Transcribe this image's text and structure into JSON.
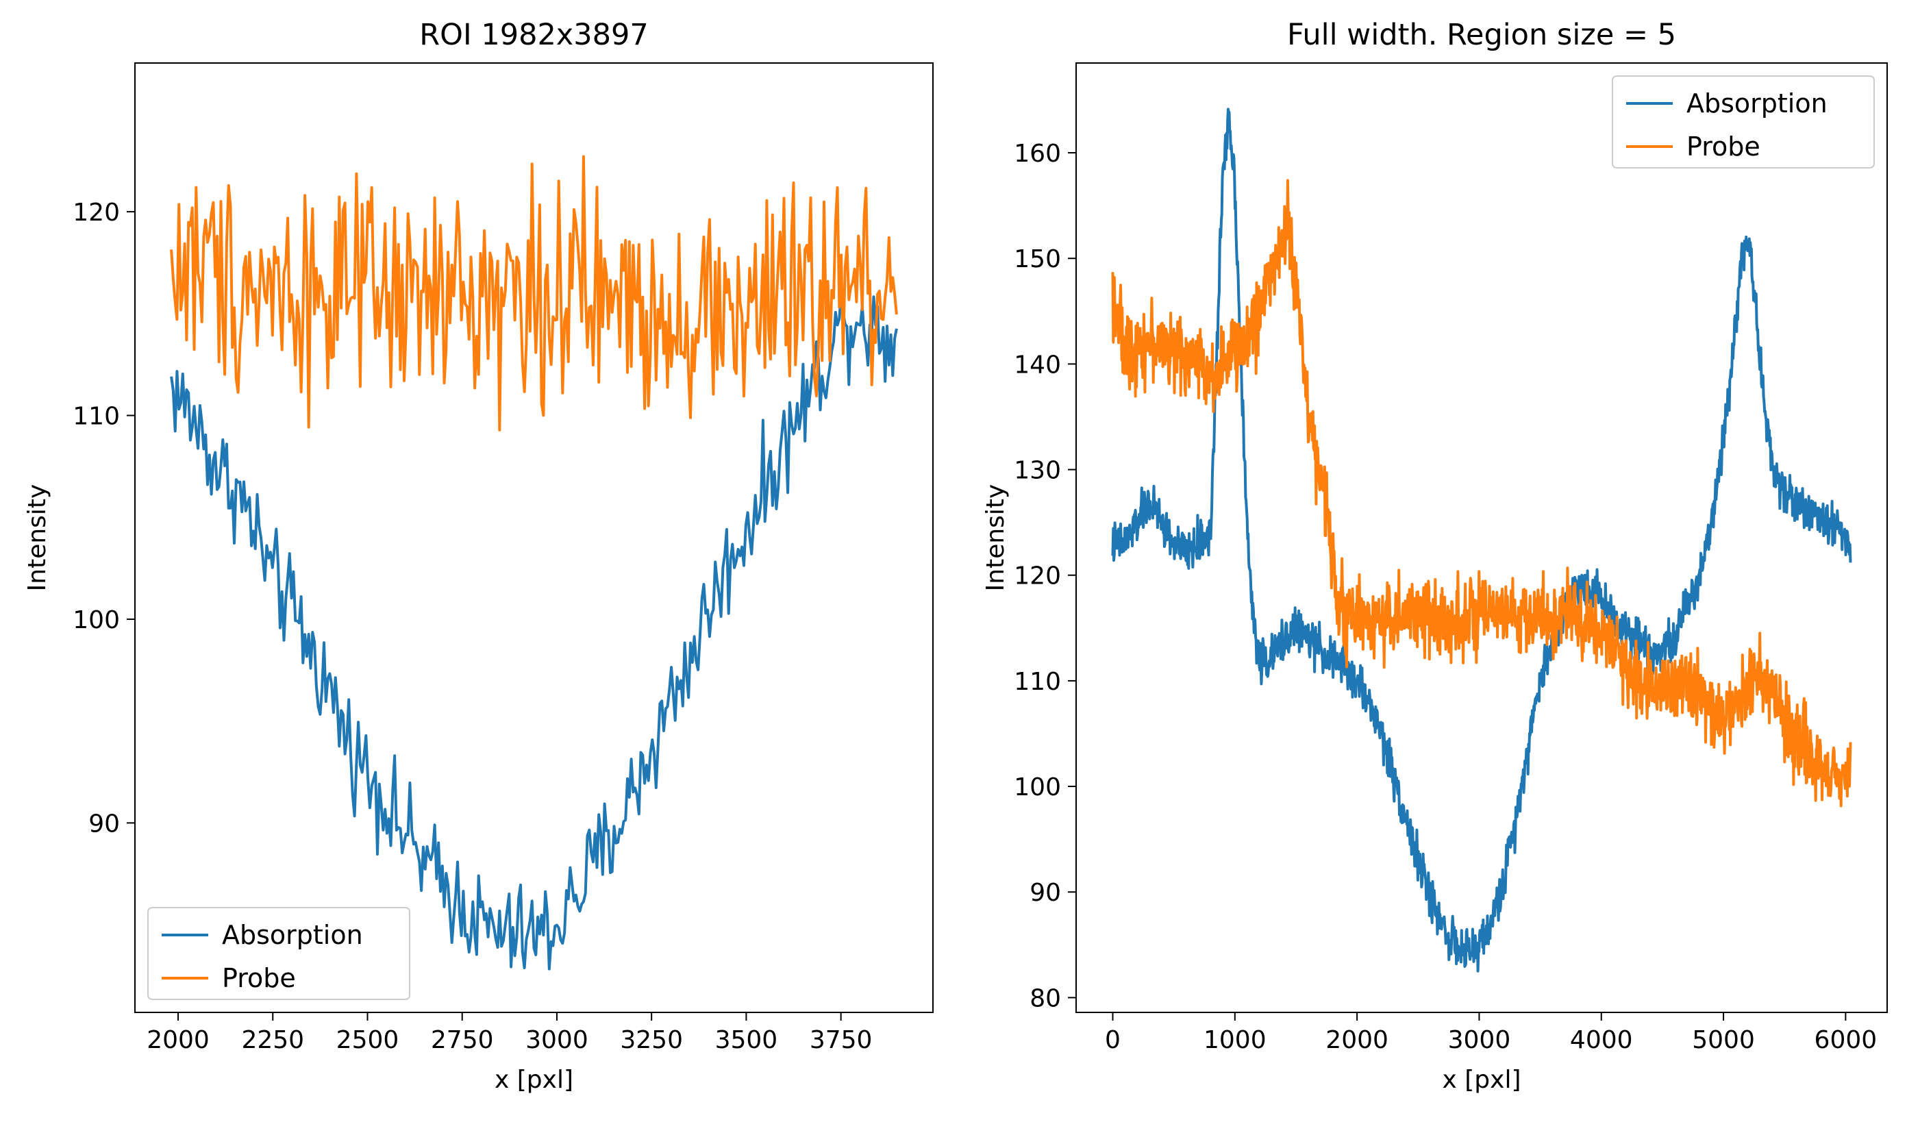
{
  "chart_data": [
    {
      "type": "line",
      "title": "ROI 1982x3897",
      "xlabel": "x [pxl]",
      "ylabel": "Intensity",
      "xlim": [
        1886,
        3993
      ],
      "ylim": [
        80.7,
        127.3
      ],
      "xticks": [
        2000,
        2250,
        2500,
        2750,
        3000,
        3250,
        3500,
        3750
      ],
      "yticks": [
        90,
        100,
        110,
        120
      ],
      "legend": {
        "placement": "lower-left"
      },
      "grid": false,
      "x_range": [
        1982,
        3897
      ],
      "series": [
        {
          "name": "Absorption",
          "color": "#1f77b4",
          "x": [
            1982,
            2050,
            2100,
            2150,
            2200,
            2250,
            2300,
            2350,
            2400,
            2450,
            2500,
            2550,
            2600,
            2650,
            2700,
            2750,
            2800,
            2850,
            2900,
            2950,
            3000,
            3050,
            3100,
            3150,
            3200,
            3250,
            3300,
            3350,
            3400,
            3450,
            3500,
            3550,
            3600,
            3650,
            3700,
            3750,
            3800,
            3850,
            3897
          ],
          "y": [
            111.5,
            109.5,
            107.5,
            106.5,
            104.5,
            102.0,
            100.5,
            98.5,
            96.5,
            94.0,
            92.5,
            91.0,
            89.5,
            88.0,
            87.0,
            86.0,
            85.0,
            84.5,
            84.5,
            84.5,
            85.0,
            86.5,
            88.0,
            89.5,
            91.5,
            93.5,
            96.0,
            98.0,
            100.5,
            102.5,
            104.5,
            106.5,
            108.5,
            110.5,
            112.5,
            114.5,
            115.0,
            114.0,
            113.5
          ],
          "noise": 1.2
        },
        {
          "name": "Probe",
          "color": "#ff7f0e",
          "x": [
            1982,
            2050,
            2200,
            2400,
            2600,
            2800,
            3000,
            3200,
            3400,
            3600,
            3800,
            3897
          ],
          "y": [
            117.0,
            117.5,
            116.5,
            116.0,
            115.5,
            116.0,
            116.0,
            115.5,
            115.0,
            115.5,
            116.5,
            115.5
          ],
          "noise": 2.6
        }
      ]
    },
    {
      "type": "line",
      "title": "Full width. Region size = 5",
      "xlabel": "x [pxl]",
      "ylabel": "Intensity",
      "xlim": [
        -300,
        6340
      ],
      "ylim": [
        78.6,
        168.5
      ],
      "xticks": [
        0,
        1000,
        2000,
        3000,
        4000,
        5000,
        6000
      ],
      "yticks": [
        80,
        90,
        100,
        110,
        120,
        130,
        140,
        150,
        160
      ],
      "legend": {
        "placement": "upper-right"
      },
      "grid": false,
      "x_range": [
        0,
        6040
      ],
      "series": [
        {
          "name": "Absorption",
          "color": "#1f77b4",
          "x": [
            0,
            100,
            200,
            300,
            400,
            500,
            600,
            700,
            800,
            850,
            900,
            950,
            1000,
            1050,
            1100,
            1150,
            1200,
            1300,
            1400,
            1500,
            1600,
            1700,
            1800,
            1900,
            2000,
            2100,
            2200,
            2300,
            2400,
            2500,
            2600,
            2700,
            2800,
            2900,
            3000,
            3100,
            3200,
            3300,
            3400,
            3500,
            3600,
            3700,
            3800,
            3900,
            4000,
            4100,
            4200,
            4300,
            4400,
            4500,
            4600,
            4700,
            4800,
            4900,
            5000,
            5100,
            5150,
            5200,
            5250,
            5300,
            5400,
            5500,
            5600,
            5700,
            5800,
            5900,
            6000,
            6040
          ],
          "y": [
            123,
            123,
            125,
            127,
            125,
            123,
            122,
            123,
            124,
            140,
            158,
            164,
            157,
            140,
            124,
            116,
            112,
            112,
            114,
            115,
            114,
            113,
            112,
            111,
            110,
            108,
            105,
            101,
            97,
            93,
            89.5,
            87,
            85,
            84,
            85,
            87,
            91,
            97,
            104,
            110,
            114,
            117,
            119,
            119,
            118,
            116,
            115,
            114,
            113,
            113,
            114,
            117,
            120,
            125,
            133,
            144,
            150,
            152,
            148,
            140,
            130,
            128,
            127,
            126,
            125,
            125,
            124,
            122
          ],
          "noise": 1.0
        },
        {
          "name": "Probe",
          "color": "#ff7f0e",
          "x": [
            0,
            50,
            100,
            200,
            300,
            400,
            500,
            600,
            700,
            800,
            900,
            1000,
            1100,
            1200,
            1300,
            1400,
            1450,
            1500,
            1550,
            1600,
            1650,
            1700,
            1750,
            1800,
            1850,
            1900,
            2000,
            2200,
            2400,
            2600,
            2800,
            3000,
            3200,
            3400,
            3600,
            3800,
            4000,
            4100,
            4200,
            4300,
            4400,
            4500,
            4600,
            4700,
            4800,
            4900,
            5000,
            5100,
            5200,
            5300,
            5400,
            5500,
            5600,
            5700,
            5800,
            5900,
            6000,
            6040
          ],
          "y": [
            147,
            144,
            141,
            142,
            142,
            142,
            141,
            141,
            140,
            139,
            140,
            141,
            142,
            145,
            149,
            152,
            153,
            147,
            142,
            136,
            132,
            129,
            126,
            122,
            118,
            116,
            116,
            116,
            116,
            116,
            116,
            116,
            116,
            116,
            116,
            116,
            115,
            113,
            111,
            110,
            110,
            110,
            110,
            110,
            109,
            107,
            106,
            108,
            110,
            110,
            110,
            106,
            104,
            103,
            102,
            101,
            101,
            102
          ],
          "noise": 1.8
        }
      ]
    }
  ]
}
